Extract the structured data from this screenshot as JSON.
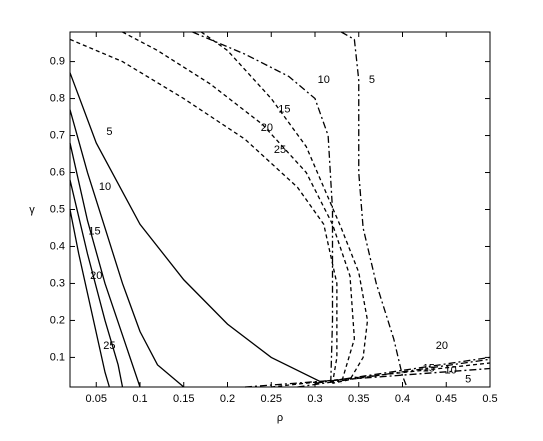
{
  "chart_data": {
    "type": "line",
    "xlabel": "ρ",
    "ylabel": "γ",
    "xlim": [
      0.02,
      0.5
    ],
    "ylim": [
      0.02,
      0.98
    ],
    "xticks": [
      0.05,
      0.1,
      0.15,
      0.2,
      0.25,
      0.3,
      0.35,
      0.4,
      0.45,
      0.5
    ],
    "yticks": [
      0.1,
      0.2,
      0.3,
      0.4,
      0.5,
      0.6,
      0.7,
      0.8,
      0.9
    ],
    "series": [
      {
        "color": "#000000",
        "style": "solid",
        "x": [
          0.02,
          0.05,
          0.1,
          0.15,
          0.2,
          0.25,
          0.31
        ],
        "values": [
          0.87,
          0.68,
          0.46,
          0.31,
          0.19,
          0.1,
          0.03
        ]
      },
      {
        "color": "#000000",
        "style": "solid",
        "x": [
          0.02,
          0.04,
          0.06,
          0.08,
          0.1,
          0.12,
          0.15
        ],
        "values": [
          0.77,
          0.6,
          0.45,
          0.3,
          0.17,
          0.08,
          0.02
        ]
      },
      {
        "color": "#000000",
        "style": "solid",
        "x": [
          0.02,
          0.04,
          0.06,
          0.08,
          0.1
        ],
        "values": [
          0.68,
          0.47,
          0.3,
          0.16,
          0.02
        ]
      },
      {
        "color": "#000000",
        "style": "solid",
        "x": [
          0.02,
          0.04,
          0.06,
          0.075,
          0.08
        ],
        "values": [
          0.58,
          0.38,
          0.2,
          0.08,
          0.02
        ]
      },
      {
        "color": "#000000",
        "style": "solid",
        "x": [
          0.02,
          0.03,
          0.045,
          0.06,
          0.065
        ],
        "values": [
          0.5,
          0.38,
          0.22,
          0.06,
          0.02
        ]
      },
      {
        "color": "#000000",
        "style": "dashdot",
        "x": [
          0.16,
          0.22,
          0.27,
          0.3,
          0.315,
          0.32,
          0.32,
          0.318
        ],
        "values": [
          0.98,
          0.92,
          0.86,
          0.8,
          0.7,
          0.5,
          0.2,
          0.03
        ]
      },
      {
        "color": "#000000",
        "style": "dashdot",
        "x": [
          0.33,
          0.345,
          0.35,
          0.35,
          0.355,
          0.37,
          0.39,
          0.4,
          0.405
        ],
        "values": [
          0.98,
          0.96,
          0.85,
          0.6,
          0.45,
          0.3,
          0.15,
          0.05,
          0.02
        ]
      },
      {
        "color": "#000000",
        "style": "dashed",
        "x": [
          0.17,
          0.2,
          0.25,
          0.29,
          0.31,
          0.33,
          0.35,
          0.36,
          0.355,
          0.34,
          0.32
        ],
        "values": [
          0.98,
          0.93,
          0.8,
          0.67,
          0.56,
          0.45,
          0.33,
          0.2,
          0.1,
          0.04,
          0.03
        ]
      },
      {
        "color": "#000000",
        "style": "dashed",
        "x": [
          0.08,
          0.12,
          0.18,
          0.24,
          0.29,
          0.32,
          0.34,
          0.345,
          0.33
        ],
        "values": [
          0.98,
          0.93,
          0.84,
          0.73,
          0.6,
          0.46,
          0.32,
          0.15,
          0.03
        ]
      },
      {
        "color": "#000000",
        "style": "dashed",
        "x": [
          0.02,
          0.08,
          0.15,
          0.22,
          0.28,
          0.31,
          0.325,
          0.325,
          0.32
        ],
        "values": [
          0.96,
          0.9,
          0.8,
          0.69,
          0.56,
          0.46,
          0.3,
          0.1,
          0.03
        ]
      },
      {
        "color": "#000000",
        "style": "dashdot",
        "x": [
          0.3,
          0.5
        ],
        "values": [
          0.03,
          0.1
        ]
      },
      {
        "color": "#000000",
        "style": "dashdot",
        "x": [
          0.28,
          0.5
        ],
        "values": [
          0.02,
          0.095
        ]
      },
      {
        "color": "#000000",
        "style": "dashed",
        "x": [
          0.25,
          0.5
        ],
        "values": [
          0.02,
          0.085
        ]
      },
      {
        "color": "#000000",
        "style": "dashdot",
        "x": [
          0.22,
          0.5
        ],
        "values": [
          0.02,
          0.07
        ]
      }
    ],
    "annotations": [
      {
        "text": "5",
        "x": 0.065,
        "y": 0.71
      },
      {
        "text": "10",
        "x": 0.06,
        "y": 0.56
      },
      {
        "text": "15",
        "x": 0.048,
        "y": 0.44
      },
      {
        "text": "20",
        "x": 0.05,
        "y": 0.32
      },
      {
        "text": "25",
        "x": 0.065,
        "y": 0.13
      },
      {
        "text": "15",
        "x": 0.265,
        "y": 0.77
      },
      {
        "text": "20",
        "x": 0.245,
        "y": 0.72
      },
      {
        "text": "25",
        "x": 0.26,
        "y": 0.66
      },
      {
        "text": "10",
        "x": 0.31,
        "y": 0.85
      },
      {
        "text": "5",
        "x": 0.365,
        "y": 0.85
      },
      {
        "text": "20",
        "x": 0.445,
        "y": 0.13
      },
      {
        "text": "15",
        "x": 0.43,
        "y": 0.07
      },
      {
        "text": "10",
        "x": 0.455,
        "y": 0.065
      },
      {
        "text": "5",
        "x": 0.475,
        "y": 0.04
      }
    ]
  }
}
